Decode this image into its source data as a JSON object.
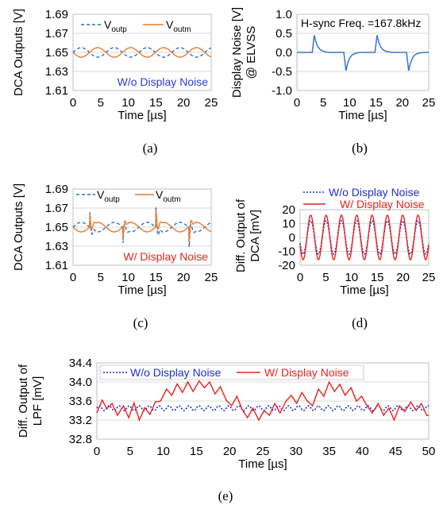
{
  "colors": {
    "blue": "#2E6BC6",
    "orange": "#E87A2A",
    "red": "#E8231E",
    "dblue": "#1F2FD0",
    "plotline": "#3A76C9"
  },
  "captions": [
    "(a)",
    "(b)",
    "(c)",
    "(d)",
    "(e)"
  ],
  "chart_data": [
    {
      "type": "line",
      "caption": "(a)",
      "ylabel": "DCA Outputs [V]",
      "xlabel": "Time [µs]",
      "xlim": [
        0,
        25
      ],
      "ylim": [
        1.61,
        1.69
      ],
      "xticks": [
        "0",
        "5",
        "10",
        "15",
        "20",
        "25"
      ],
      "yticks": [
        "1.61",
        "1.63",
        "1.65",
        "1.67",
        "1.69"
      ],
      "legend": [
        {
          "main": "V",
          "sub": "outp"
        },
        {
          "main": "V",
          "sub": "outm"
        }
      ],
      "annotation": "W/o Display Noise",
      "series": [
        {
          "name": "Voutp",
          "style": "dashed",
          "color": "#2E6BC6",
          "period_us": 5.96,
          "offset": 1.65,
          "amplitude": 0.005,
          "phase": 0
        },
        {
          "name": "Voutm",
          "style": "solid",
          "color": "#E87A2A",
          "period_us": 5.96,
          "offset": 1.65,
          "amplitude": 0.005,
          "phase": 180
        }
      ]
    },
    {
      "type": "line",
      "caption": "(b)",
      "ylabel": "Display Noise [V]",
      "ylabel2": "@ ELVSS",
      "xlabel": "Time [µs]",
      "xlim": [
        0,
        25
      ],
      "ylim": [
        -1.0,
        1.0
      ],
      "xticks": [
        "0",
        "5",
        "10",
        "15",
        "20",
        "25"
      ],
      "yticks": [
        "-1.0",
        "-0.5",
        "0.0",
        "0.5",
        "1.0"
      ],
      "annotation": "H-sync Freq. =167.8kHz",
      "series": [
        {
          "name": "Display Noise",
          "color": "#3A76C9",
          "x": [
            0,
            2.9,
            3.3,
            3.6,
            4.0,
            4.5,
            5.2,
            6.0,
            8.9,
            9.3,
            9.6,
            10.0,
            10.5,
            11.2,
            12.0,
            14.8,
            15.2,
            15.5,
            15.9,
            16.4,
            17.1,
            18.0,
            20.8,
            21.2,
            21.5,
            21.9,
            22.4,
            23.1,
            24.0,
            25
          ],
          "y": [
            0,
            0,
            0.45,
            0.28,
            0.14,
            0.06,
            0.02,
            0,
            0,
            -0.48,
            -0.3,
            -0.15,
            -0.06,
            -0.02,
            0,
            0,
            0.45,
            0.28,
            0.14,
            0.06,
            0.02,
            0,
            0,
            -0.48,
            -0.3,
            -0.15,
            -0.06,
            -0.02,
            0,
            0
          ]
        }
      ]
    },
    {
      "type": "line",
      "caption": "(c)",
      "ylabel": "DCA Outputs [V]",
      "xlabel": "Time [µs]",
      "xlim": [
        0,
        25
      ],
      "ylim": [
        1.61,
        1.69
      ],
      "xticks": [
        "0",
        "5",
        "10",
        "15",
        "20",
        "25"
      ],
      "yticks": [
        "1.61",
        "1.63",
        "1.65",
        "1.67",
        "1.69"
      ],
      "legend": [
        {
          "main": "V",
          "sub": "outp"
        },
        {
          "main": "V",
          "sub": "outm"
        }
      ],
      "annotation": "W/ Display Noise",
      "series": [
        {
          "name": "Voutp",
          "style": "dashed",
          "color": "#2E6BC6",
          "period_us": 5.96,
          "offset": 1.65,
          "amplitude": 0.005,
          "phase": 0
        },
        {
          "name": "Voutm",
          "style": "solid",
          "color": "#E87A2A",
          "period_us": 5.96,
          "offset": 1.65,
          "amplitude": 0.005,
          "phase": 180
        }
      ],
      "spikes": [
        {
          "t": 3.0,
          "up": 0.02,
          "down": 0.017
        },
        {
          "t": 9.0,
          "up": -0.02,
          "down": -0.016
        },
        {
          "t": 15.0,
          "up": 0.022,
          "down": 0.018
        },
        {
          "t": 21.0,
          "up": -0.02,
          "down": -0.016
        }
      ]
    },
    {
      "type": "line",
      "caption": "(d)",
      "ylabel": "Diff. Output of",
      "ylabel2": "DCA [mV]",
      "xlabel": "Time [µs]",
      "xlim": [
        0,
        25
      ],
      "ylim": [
        -20,
        20
      ],
      "xticks": [
        "0",
        "5",
        "10",
        "15",
        "20",
        "25"
      ],
      "yticks": [
        "-20",
        "-10",
        "0",
        "10",
        "20"
      ],
      "legend": [
        "W/o Display Noise",
        "W/ Display Noise"
      ],
      "series": [
        {
          "name": "W/o Display Noise",
          "style": "dotted",
          "color": "#1F2FD0",
          "period_us": 2.98,
          "amplitude": 12,
          "phase": 200
        },
        {
          "name": "W/ Display Noise",
          "style": "solid",
          "color": "#E8231E",
          "period_us": 2.98,
          "amplitude": 16,
          "phase": 200
        }
      ]
    },
    {
      "type": "line",
      "caption": "(e)",
      "ylabel": "Diff. Output of",
      "ylabel2": "LPF [mV]",
      "xlabel": "Time [µs]",
      "xlim": [
        0,
        50
      ],
      "ylim": [
        32.8,
        34.4
      ],
      "xticks": [
        "0",
        "5",
        "10",
        "15",
        "20",
        "25",
        "30",
        "35",
        "40",
        "45",
        "50"
      ],
      "yticks": [
        "32.8",
        "33.2",
        "33.6",
        "34.0",
        "34.4"
      ],
      "legend": [
        "W/o Display Noise",
        "W/ Display Noise"
      ],
      "series": [
        {
          "name": "W/o Display Noise",
          "style": "dotted",
          "color": "#1F2FD0",
          "period_us": 1.5,
          "offset": 33.45,
          "amplitude": 0.05
        },
        {
          "name": "W/ Display Noise",
          "style": "solid",
          "color": "#E8231E",
          "x": [
            0,
            0.8,
            1.5,
            2.3,
            3.1,
            4.0,
            4.8,
            5.6,
            6.4,
            7.2,
            8.0,
            8.8,
            9.6,
            10.5,
            11.3,
            12.1,
            12.9,
            13.7,
            14.5,
            15.4,
            16.2,
            17.0,
            17.8,
            18.6,
            19.5,
            20.3,
            21.1,
            21.9,
            22.7,
            23.5,
            24.4,
            25.2,
            26.0,
            26.8,
            27.6,
            28.5,
            29.3,
            30.1,
            30.9,
            31.7,
            32.5,
            33.4,
            34.2,
            35.0,
            35.8,
            36.6,
            37.4,
            38.3,
            39.1,
            39.9,
            40.7,
            41.5,
            42.4,
            43.2,
            44.0,
            44.8,
            45.6,
            46.4,
            47.3,
            48.1,
            48.9,
            49.7,
            50
          ],
          "y": [
            33.35,
            33.62,
            33.44,
            33.55,
            33.3,
            33.5,
            33.25,
            33.56,
            33.2,
            33.46,
            33.32,
            33.58,
            33.6,
            33.85,
            33.72,
            33.96,
            33.78,
            34.0,
            33.8,
            34.02,
            33.88,
            34.0,
            33.75,
            33.9,
            33.62,
            33.5,
            33.7,
            33.42,
            33.25,
            33.45,
            33.2,
            33.4,
            33.3,
            33.55,
            33.35,
            33.6,
            33.72,
            33.55,
            33.78,
            33.6,
            33.5,
            33.85,
            33.7,
            34.0,
            33.8,
            33.95,
            33.72,
            33.88,
            33.6,
            33.7,
            33.5,
            33.35,
            33.55,
            33.3,
            33.45,
            33.2,
            33.5,
            33.38,
            33.58,
            33.4,
            33.55,
            33.3,
            33.3
          ]
        }
      ]
    }
  ]
}
